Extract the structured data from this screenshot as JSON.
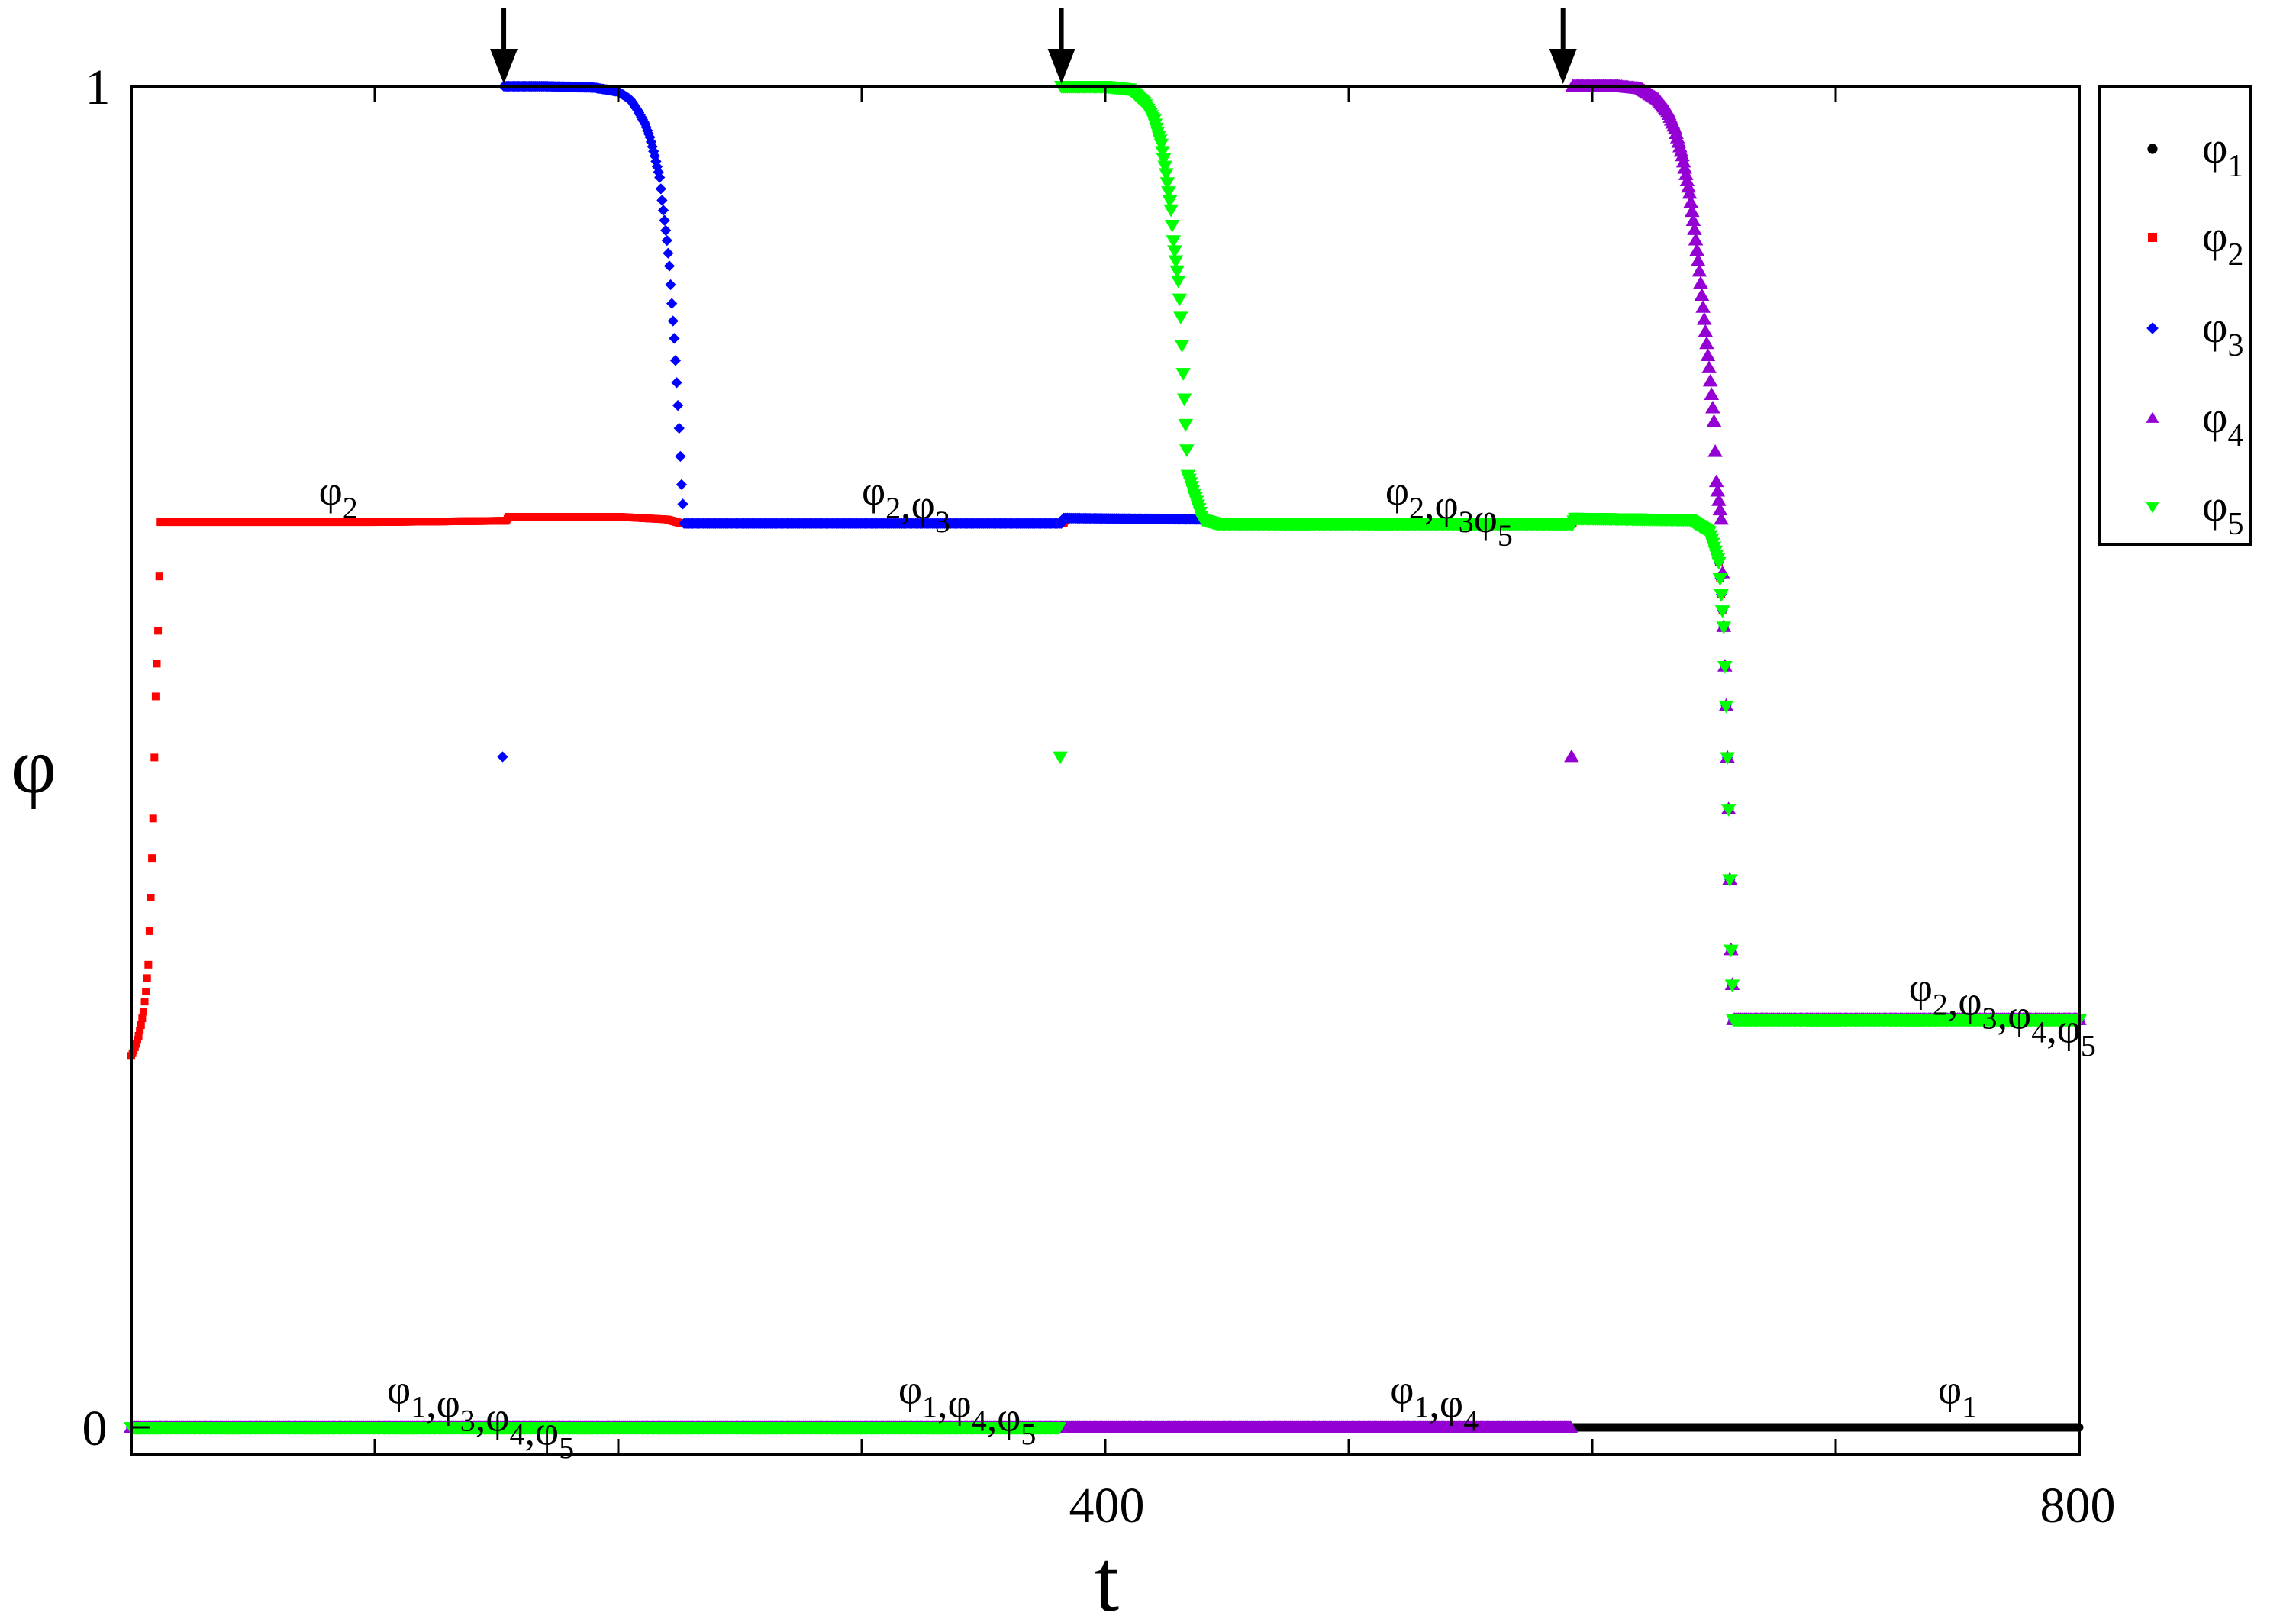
{
  "chart_data": {
    "type": "scatter",
    "xlabel": "t",
    "ylabel": "φ",
    "xlim": [
      0,
      800
    ],
    "ylim": [
      -0.02,
      1
    ],
    "grid": false,
    "legend_position": "outside-right",
    "x_tick_labels": [
      "400",
      "800"
    ],
    "y_tick_labels": [
      "0",
      "1"
    ],
    "arrows_at_x": [
      153,
      382,
      588
    ],
    "colors": {
      "phi1": "#000000",
      "phi2": "#ff0000",
      "phi3": "#0000ff",
      "phi4": "#9400d3",
      "phi5": "#00ff00"
    },
    "series": [
      {
        "name": "φ1",
        "key": "phi1",
        "marker": "circle",
        "points": [
          [
            0,
            0
          ],
          [
            100,
            0
          ],
          [
            200,
            0
          ],
          [
            300,
            0
          ],
          [
            400,
            0
          ],
          [
            500,
            0
          ],
          [
            593,
            0
          ],
          [
            650,
            0
          ],
          [
            700,
            0
          ],
          [
            800,
            0
          ]
        ]
      },
      {
        "name": "φ2",
        "key": "phi2",
        "marker": "square",
        "points": [
          [
            0,
            0.277
          ],
          [
            1,
            0.281
          ],
          [
            2,
            0.286
          ],
          [
            3,
            0.292
          ],
          [
            4,
            0.3
          ],
          [
            5,
            0.31
          ],
          [
            6,
            0.325
          ],
          [
            7,
            0.345
          ],
          [
            8,
            0.395
          ],
          [
            9,
            0.454
          ],
          [
            10,
            0.545
          ],
          [
            11,
            0.594
          ],
          [
            12,
            0.675
          ],
          [
            20,
            0.675
          ],
          [
            60,
            0.675
          ],
          [
            100,
            0.675
          ],
          [
            154,
            0.676
          ],
          [
            155,
            0.679
          ],
          [
            160,
            0.679
          ],
          [
            200,
            0.679
          ],
          [
            220,
            0.677
          ],
          [
            226,
            0.674
          ],
          [
            300,
            0.674
          ],
          [
            383,
            0.674
          ],
          [
            384,
            0.678
          ],
          [
            440,
            0.677
          ],
          [
            446,
            0.674
          ],
          [
            500,
            0.674
          ],
          [
            592,
            0.674
          ],
          [
            593,
            0.678
          ],
          [
            640,
            0.677
          ],
          [
            648,
            0.668
          ],
          [
            652,
            0.645
          ],
          [
            654,
            0.597
          ],
          [
            655,
            0.538
          ],
          [
            656,
            0.461
          ],
          [
            657,
            0.356
          ],
          [
            658,
            0.304
          ],
          [
            700,
            0.304
          ],
          [
            800,
            0.304
          ]
        ]
      },
      {
        "name": "φ3",
        "key": "phi3",
        "marker": "diamond",
        "points": [
          [
            0,
            0
          ],
          [
            100,
            0
          ],
          [
            152,
            0
          ],
          [
            153,
            1
          ],
          [
            170,
            1
          ],
          [
            190,
            0.999
          ],
          [
            200,
            0.996
          ],
          [
            205,
            0.99
          ],
          [
            208,
            0.982
          ],
          [
            211,
            0.972
          ],
          [
            213,
            0.962
          ],
          [
            215,
            0.948
          ],
          [
            217,
            0.932
          ],
          [
            218,
            0.915
          ],
          [
            219,
            0.9
          ],
          [
            220,
            0.885
          ],
          [
            221,
            0.866
          ],
          [
            222,
            0.838
          ],
          [
            223,
            0.812
          ],
          [
            224,
            0.779
          ],
          [
            225,
            0.745
          ],
          [
            226,
            0.703
          ],
          [
            227,
            0.674
          ],
          [
            300,
            0.674
          ],
          [
            382,
            0.674
          ],
          [
            383,
            0.678
          ],
          [
            440,
            0.677
          ],
          [
            446,
            0.674
          ],
          [
            500,
            0.674
          ],
          [
            592,
            0.674
          ],
          [
            593,
            0.678
          ],
          [
            640,
            0.677
          ],
          [
            648,
            0.668
          ],
          [
            652,
            0.645
          ],
          [
            654,
            0.597
          ],
          [
            655,
            0.538
          ],
          [
            656,
            0.461
          ],
          [
            657,
            0.356
          ],
          [
            658,
            0.304
          ],
          [
            700,
            0.304
          ],
          [
            800,
            0.304
          ]
        ]
      },
      {
        "name": "φ4",
        "key": "phi4",
        "marker": "triangle-up",
        "points": [
          [
            0,
            0
          ],
          [
            200,
            0
          ],
          [
            300,
            0
          ],
          [
            382,
            0
          ],
          [
            400,
            0
          ],
          [
            500,
            0
          ],
          [
            591,
            0
          ],
          [
            592,
            1
          ],
          [
            610,
            1
          ],
          [
            620,
            0.998
          ],
          [
            627,
            0.99
          ],
          [
            631,
            0.981
          ],
          [
            634,
            0.968
          ],
          [
            637,
            0.948
          ],
          [
            640,
            0.92
          ],
          [
            642,
            0.893
          ],
          [
            644,
            0.862
          ],
          [
            646,
            0.826
          ],
          [
            648,
            0.79
          ],
          [
            650,
            0.75
          ],
          [
            651,
            0.705
          ],
          [
            653,
            0.677
          ],
          [
            654,
            0.597
          ],
          [
            655,
            0.538
          ],
          [
            656,
            0.461
          ],
          [
            657,
            0.356
          ],
          [
            658,
            0.304
          ],
          [
            700,
            0.304
          ],
          [
            800,
            0.304
          ]
        ]
      },
      {
        "name": "φ5",
        "key": "phi5",
        "marker": "triangle-down",
        "points": [
          [
            0,
            0
          ],
          [
            100,
            0
          ],
          [
            200,
            0
          ],
          [
            300,
            0
          ],
          [
            381,
            0
          ],
          [
            382,
            1
          ],
          [
            400,
            1
          ],
          [
            410,
            0.998
          ],
          [
            416,
            0.988
          ],
          [
            420,
            0.975
          ],
          [
            423,
            0.957
          ],
          [
            425,
            0.935
          ],
          [
            427,
            0.908
          ],
          [
            428,
            0.885
          ],
          [
            430,
            0.855
          ],
          [
            431,
            0.828
          ],
          [
            432,
            0.786
          ],
          [
            433,
            0.748
          ],
          [
            434,
            0.71
          ],
          [
            440,
            0.677
          ],
          [
            446,
            0.674
          ],
          [
            500,
            0.674
          ],
          [
            592,
            0.674
          ],
          [
            593,
            0.678
          ],
          [
            640,
            0.677
          ],
          [
            648,
            0.668
          ],
          [
            652,
            0.645
          ],
          [
            654,
            0.597
          ],
          [
            655,
            0.538
          ],
          [
            656,
            0.461
          ],
          [
            657,
            0.356
          ],
          [
            658,
            0.304
          ],
          [
            700,
            0.304
          ],
          [
            800,
            0.304
          ]
        ]
      }
    ],
    "annotations": [
      {
        "parts": [
          [
            "φ",
            "2"
          ]
        ],
        "x": 77,
        "y": 0.68
      },
      {
        "parts": [
          [
            "φ",
            "2"
          ],
          [
            ",φ",
            "3"
          ]
        ],
        "x": 300,
        "y": 0.68
      },
      {
        "parts": [
          [
            "φ",
            "2"
          ],
          [
            ",φ",
            "3"
          ],
          [
            "φ",
            "5"
          ]
        ],
        "x": 515,
        "y": 0.68
      },
      {
        "parts": [
          [
            "φ",
            "2"
          ],
          [
            ",φ",
            "3"
          ],
          [
            ",φ",
            "4"
          ],
          [
            ",φ",
            "5"
          ]
        ],
        "x": 730,
        "y": 0.31
      },
      {
        "parts": [
          [
            "φ",
            "1"
          ],
          [
            ",φ",
            "3"
          ],
          [
            ",φ",
            "4"
          ],
          [
            ",φ",
            "5"
          ]
        ],
        "x": 105,
        "y": 0.01
      },
      {
        "parts": [
          [
            "φ",
            "1"
          ],
          [
            ",φ",
            "4"
          ],
          [
            ",φ",
            "5"
          ]
        ],
        "x": 315,
        "y": 0.01
      },
      {
        "parts": [
          [
            "φ",
            "1"
          ],
          [
            ",φ",
            "4"
          ]
        ],
        "x": 517,
        "y": 0.01
      },
      {
        "parts": [
          [
            "φ",
            "1"
          ]
        ],
        "x": 742,
        "y": 0.01
      }
    ]
  }
}
